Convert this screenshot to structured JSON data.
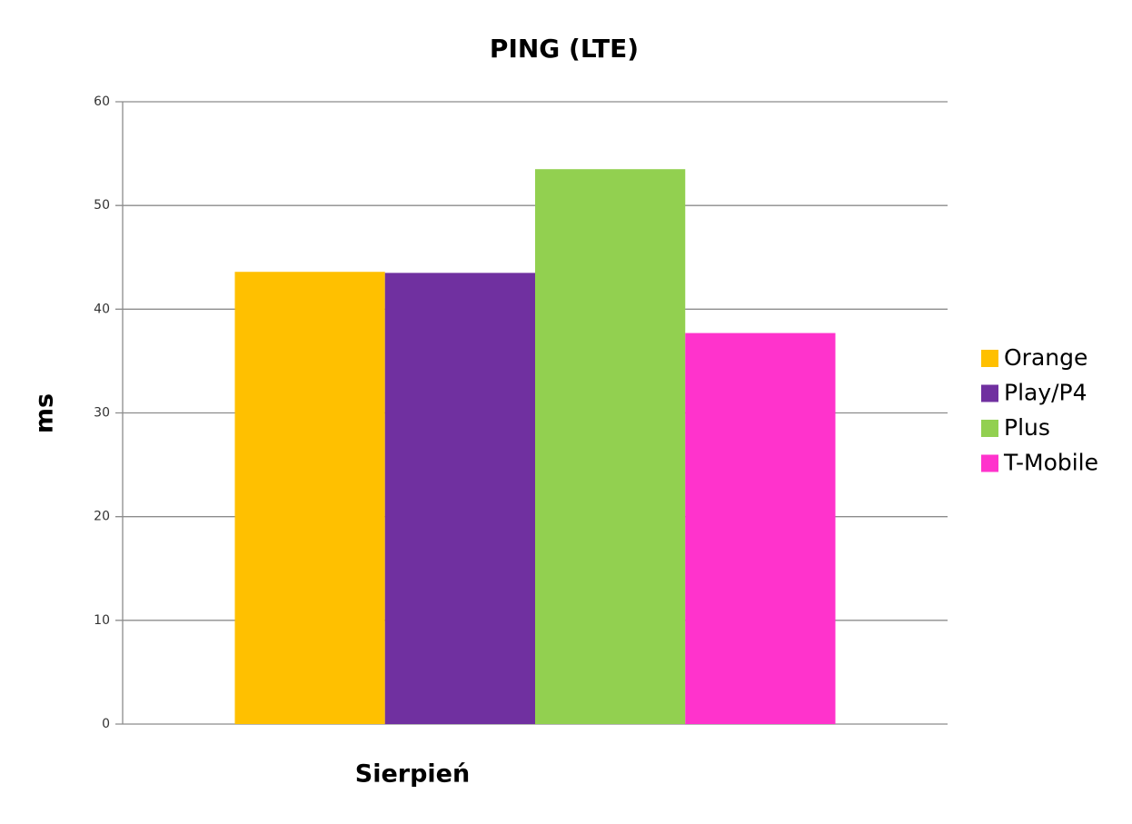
{
  "chart_data": {
    "type": "bar",
    "title": "PING (LTE)",
    "y_label": "ms",
    "categories": [
      "Sierpień"
    ],
    "series": [
      {
        "name": "Orange",
        "color": "#ffc000",
        "values": [
          43.6
        ]
      },
      {
        "name": "Play/P4",
        "color": "#7030a0",
        "values": [
          43.5
        ]
      },
      {
        "name": "Plus",
        "color": "#92d050",
        "values": [
          53.5
        ]
      },
      {
        "name": "T-Mobile",
        "color": "#ff33cc",
        "values": [
          37.7
        ]
      }
    ],
    "ylim": [
      0,
      60
    ],
    "yticks": [
      0,
      10,
      20,
      30,
      40,
      50,
      60
    ],
    "grid": true,
    "legend": "right"
  }
}
